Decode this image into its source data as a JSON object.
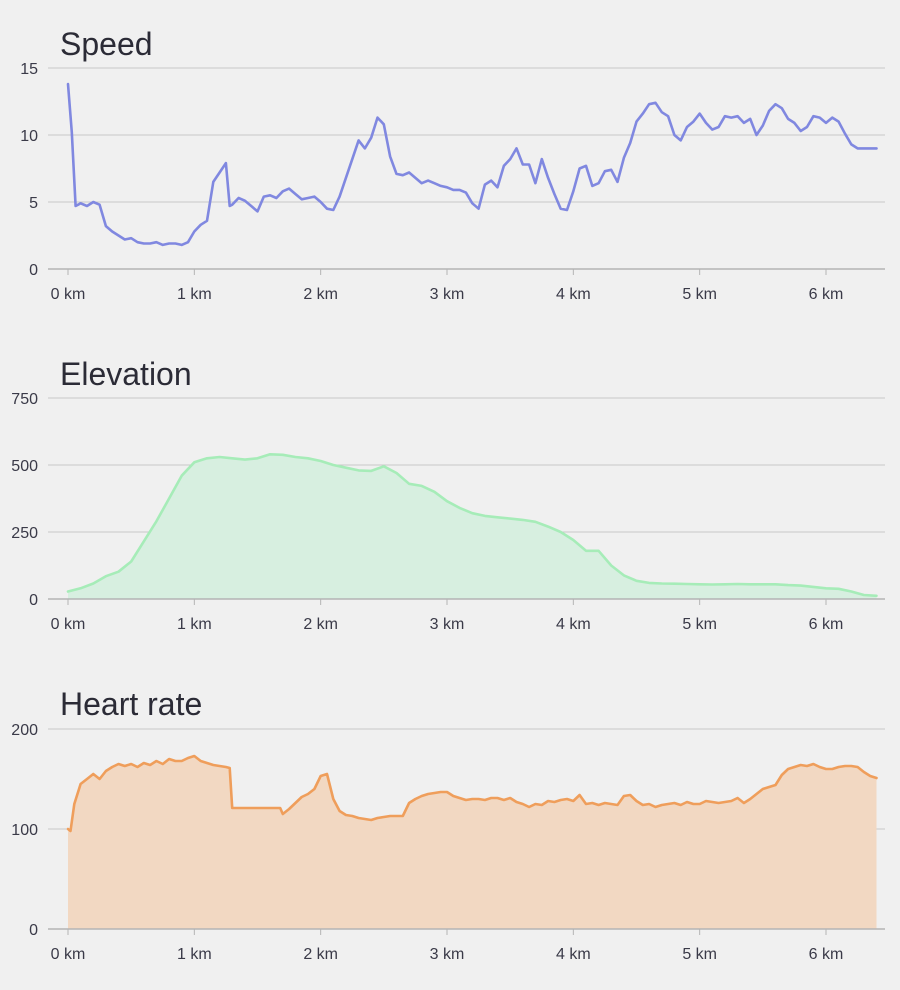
{
  "chart_data": [
    {
      "type": "line",
      "title": "Speed",
      "xlabel": "",
      "ylabel": "",
      "x_unit": "km",
      "xlim": [
        0,
        6.4
      ],
      "ylim": [
        0,
        15
      ],
      "x_ticks": [
        0,
        1,
        2,
        3,
        4,
        5,
        6
      ],
      "x_tick_labels": [
        "0 km",
        "1 km",
        "2 km",
        "3 km",
        "4 km",
        "5 km",
        "6 km"
      ],
      "y_ticks": [
        0,
        5,
        10,
        15
      ],
      "y_tick_labels": [
        "0",
        "5",
        "10",
        "15"
      ],
      "grid": true,
      "color": "#8088e0",
      "fill": false,
      "series": [
        {
          "x": [
            0,
            0.03,
            0.06,
            0.08,
            0.1,
            0.15,
            0.2,
            0.25,
            0.3,
            0.35,
            0.4,
            0.45,
            0.5,
            0.55,
            0.6,
            0.65,
            0.7,
            0.75,
            0.8,
            0.85,
            0.9,
            0.95,
            1.0,
            1.05,
            1.1,
            1.15,
            1.2,
            1.25,
            1.28,
            1.3,
            1.35,
            1.4,
            1.45,
            1.5,
            1.55,
            1.6,
            1.65,
            1.7,
            1.75,
            1.8,
            1.85,
            1.9,
            1.95,
            2.0,
            2.05,
            2.1,
            2.15,
            2.2,
            2.25,
            2.3,
            2.35,
            2.4,
            2.45,
            2.5,
            2.55,
            2.6,
            2.65,
            2.7,
            2.75,
            2.8,
            2.85,
            2.9,
            2.95,
            3.0,
            3.05,
            3.1,
            3.15,
            3.2,
            3.25,
            3.3,
            3.35,
            3.4,
            3.45,
            3.5,
            3.55,
            3.6,
            3.65,
            3.7,
            3.75,
            3.8,
            3.85,
            3.9,
            3.95,
            4.0,
            4.05,
            4.1,
            4.15,
            4.2,
            4.25,
            4.3,
            4.35,
            4.4,
            4.45,
            4.5,
            4.55,
            4.6,
            4.65,
            4.7,
            4.75,
            4.8,
            4.85,
            4.9,
            4.95,
            5.0,
            5.05,
            5.1,
            5.15,
            5.2,
            5.25,
            5.3,
            5.35,
            5.4,
            5.45,
            5.5,
            5.55,
            5.6,
            5.65,
            5.7,
            5.75,
            5.8,
            5.85,
            5.9,
            5.95,
            6.0,
            6.05,
            6.1,
            6.15,
            6.2,
            6.25,
            6.3,
            6.35,
            6.4
          ],
          "y": [
            13.8,
            10.2,
            4.7,
            4.8,
            4.9,
            4.7,
            5.0,
            4.8,
            3.2,
            2.8,
            2.5,
            2.2,
            2.3,
            2.0,
            1.9,
            1.9,
            2.0,
            1.8,
            1.9,
            1.9,
            1.8,
            2.0,
            2.8,
            3.3,
            3.6,
            6.5,
            7.2,
            7.9,
            4.7,
            4.8,
            5.3,
            5.1,
            4.7,
            4.3,
            5.4,
            5.5,
            5.3,
            5.8,
            6.0,
            5.6,
            5.2,
            5.3,
            5.4,
            5.0,
            4.5,
            4.4,
            5.4,
            6.8,
            8.2,
            9.6,
            9.0,
            9.8,
            11.3,
            10.8,
            8.4,
            7.1,
            7.0,
            7.2,
            6.8,
            6.4,
            6.6,
            6.4,
            6.2,
            6.1,
            5.9,
            5.9,
            5.7,
            4.9,
            4.5,
            6.3,
            6.6,
            6.1,
            7.7,
            8.2,
            9.0,
            7.8,
            7.8,
            6.4,
            8.2,
            6.8,
            5.6,
            4.5,
            4.4,
            5.8,
            7.5,
            7.7,
            6.2,
            6.4,
            7.3,
            7.4,
            6.5,
            8.3,
            9.4,
            11.0,
            11.6,
            12.3,
            12.4,
            11.7,
            11.4,
            10.0,
            9.6,
            10.6,
            11.0,
            11.6,
            10.9,
            10.4,
            10.6,
            11.4,
            11.3,
            11.4,
            10.9,
            11.2,
            10.0,
            10.7,
            11.8,
            12.3,
            12.0,
            11.2,
            10.9,
            10.3,
            10.6,
            11.4,
            11.3,
            10.9,
            11.3,
            11.0,
            10.1,
            9.3,
            9.0,
            9.0,
            9.0,
            9.0
          ]
        }
      ]
    },
    {
      "type": "area",
      "title": "Elevation",
      "xlabel": "",
      "ylabel": "",
      "x_unit": "km",
      "xlim": [
        0,
        6.4
      ],
      "ylim": [
        0,
        750
      ],
      "x_ticks": [
        0,
        1,
        2,
        3,
        4,
        5,
        6
      ],
      "x_tick_labels": [
        "0 km",
        "1 km",
        "2 km",
        "3 km",
        "4 km",
        "5 km",
        "6 km"
      ],
      "y_ticks": [
        0,
        250,
        500,
        750
      ],
      "y_tick_labels": [
        "0",
        "250",
        "500",
        "750"
      ],
      "grid": true,
      "color": "#a6ecb8",
      "fill_color": "#d7efe0",
      "fill": true,
      "series": [
        {
          "x": [
            0,
            0.1,
            0.2,
            0.3,
            0.4,
            0.5,
            0.6,
            0.7,
            0.8,
            0.9,
            1.0,
            1.1,
            1.2,
            1.3,
            1.4,
            1.5,
            1.6,
            1.7,
            1.8,
            1.9,
            2.0,
            2.1,
            2.2,
            2.3,
            2.4,
            2.5,
            2.6,
            2.7,
            2.8,
            2.9,
            3.0,
            3.1,
            3.2,
            3.3,
            3.4,
            3.5,
            3.6,
            3.7,
            3.8,
            3.9,
            4.0,
            4.1,
            4.2,
            4.3,
            4.4,
            4.5,
            4.6,
            4.7,
            4.8,
            4.9,
            5.0,
            5.1,
            5.2,
            5.3,
            5.4,
            5.5,
            5.6,
            5.7,
            5.8,
            5.9,
            6.0,
            6.1,
            6.2,
            6.3,
            6.4
          ],
          "y": [
            28,
            40,
            58,
            85,
            102,
            140,
            215,
            290,
            375,
            460,
            510,
            525,
            530,
            525,
            520,
            525,
            540,
            538,
            530,
            525,
            515,
            500,
            490,
            480,
            478,
            495,
            470,
            430,
            422,
            400,
            365,
            340,
            320,
            310,
            305,
            300,
            295,
            288,
            270,
            250,
            220,
            180,
            180,
            125,
            88,
            68,
            60,
            58,
            57,
            56,
            55,
            54,
            55,
            56,
            55,
            55,
            55,
            52,
            50,
            45,
            40,
            38,
            28,
            15,
            12
          ]
        }
      ]
    },
    {
      "type": "area",
      "title": "Heart rate",
      "xlabel": "",
      "ylabel": "",
      "x_unit": "km",
      "xlim": [
        0,
        6.4
      ],
      "ylim": [
        0,
        200
      ],
      "x_ticks": [
        0,
        1,
        2,
        3,
        4,
        5,
        6
      ],
      "x_tick_labels": [
        "0 km",
        "1 km",
        "2 km",
        "3 km",
        "4 km",
        "5 km",
        "6 km"
      ],
      "y_ticks": [
        0,
        100,
        200
      ],
      "y_tick_labels": [
        "0",
        "100",
        "200"
      ],
      "grid": true,
      "color": "#ef9e5b",
      "fill_color": "#f2d8c2",
      "fill": true,
      "series": [
        {
          "x": [
            0,
            0.02,
            0.05,
            0.1,
            0.15,
            0.2,
            0.25,
            0.3,
            0.35,
            0.4,
            0.45,
            0.5,
            0.55,
            0.6,
            0.65,
            0.7,
            0.75,
            0.8,
            0.85,
            0.9,
            0.95,
            1.0,
            1.05,
            1.1,
            1.15,
            1.2,
            1.25,
            1.28,
            1.3,
            1.4,
            1.5,
            1.6,
            1.68,
            1.7,
            1.75,
            1.8,
            1.85,
            1.9,
            1.95,
            2.0,
            2.05,
            2.1,
            2.15,
            2.2,
            2.25,
            2.3,
            2.35,
            2.4,
            2.45,
            2.5,
            2.55,
            2.6,
            2.65,
            2.7,
            2.75,
            2.8,
            2.85,
            2.9,
            2.95,
            3.0,
            3.05,
            3.1,
            3.15,
            3.2,
            3.25,
            3.3,
            3.35,
            3.4,
            3.45,
            3.5,
            3.55,
            3.6,
            3.65,
            3.7,
            3.75,
            3.8,
            3.85,
            3.9,
            3.95,
            4.0,
            4.05,
            4.1,
            4.15,
            4.2,
            4.25,
            4.3,
            4.35,
            4.4,
            4.45,
            4.5,
            4.55,
            4.6,
            4.65,
            4.7,
            4.75,
            4.8,
            4.85,
            4.9,
            4.95,
            5.0,
            5.05,
            5.1,
            5.15,
            5.2,
            5.25,
            5.3,
            5.35,
            5.4,
            5.45,
            5.5,
            5.55,
            5.6,
            5.65,
            5.7,
            5.75,
            5.8,
            5.85,
            5.9,
            5.95,
            6.0,
            6.05,
            6.1,
            6.15,
            6.2,
            6.25,
            6.3,
            6.35,
            6.4
          ],
          "y": [
            100,
            98,
            125,
            145,
            150,
            155,
            150,
            158,
            162,
            165,
            163,
            165,
            162,
            166,
            164,
            168,
            165,
            170,
            168,
            168,
            171,
            173,
            168,
            166,
            164,
            163,
            162,
            161,
            121,
            121,
            121,
            121,
            121,
            115,
            120,
            126,
            132,
            135,
            140,
            153,
            155,
            130,
            118,
            114,
            113,
            111,
            110,
            109,
            111,
            112,
            113,
            113,
            113,
            126,
            130,
            133,
            135,
            136,
            137,
            137,
            133,
            131,
            129,
            130,
            130,
            129,
            131,
            131,
            129,
            131,
            127,
            125,
            122,
            125,
            124,
            128,
            127,
            129,
            130,
            128,
            134,
            125,
            126,
            124,
            126,
            125,
            124,
            133,
            134,
            128,
            124,
            125,
            122,
            124,
            125,
            126,
            124,
            127,
            125,
            125,
            128,
            127,
            126,
            127,
            128,
            131,
            126,
            130,
            135,
            140,
            142,
            144,
            154,
            160,
            162,
            164,
            163,
            165,
            162,
            160,
            160,
            162,
            163,
            163,
            162,
            157,
            153,
            151
          ]
        }
      ]
    }
  ]
}
